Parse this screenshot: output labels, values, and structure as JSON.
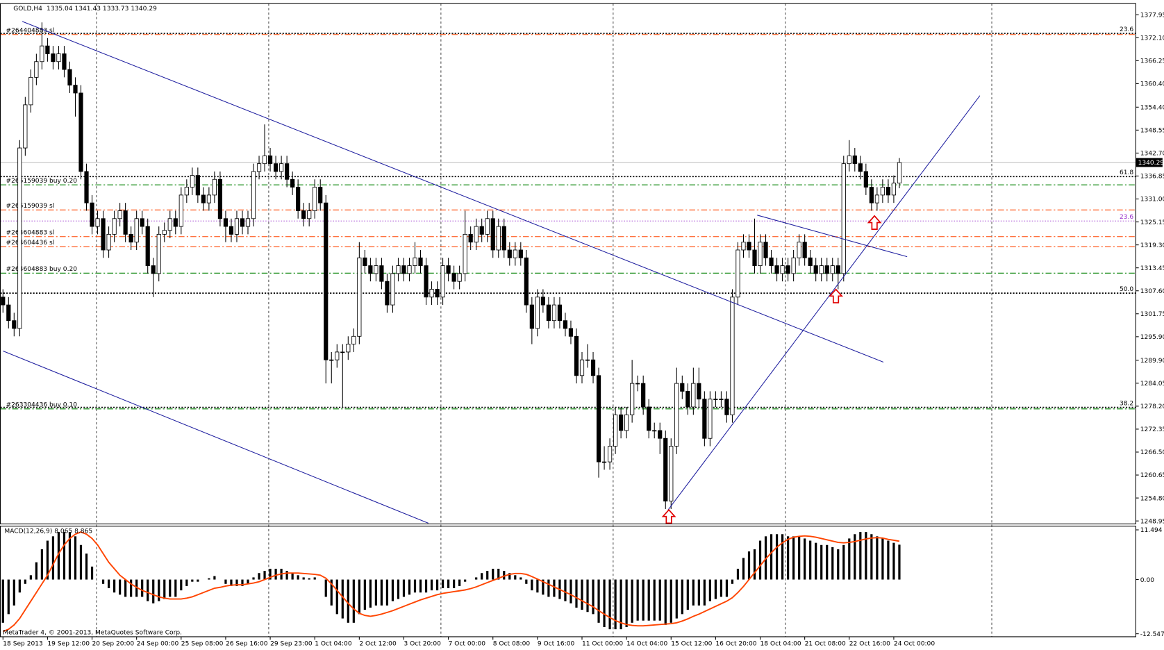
{
  "chart_data": {
    "type": "candlestick",
    "symbol": "GOLD,H4",
    "copyright": "MetaTrader 4, © 2001-2013, MetaQuotes Software Corp.",
    "ylim": [
      1248.19,
      1380.79
    ],
    "yticks": [
      1377.95,
      {
        "value": 1372.1,
        "label": "1372.10"
      },
      1366.25,
      {
        "value": 1360.4,
        "label": "1360.40"
      },
      {
        "value": 1354.4,
        "label": "1354.40"
      },
      1348.55,
      {
        "value": 1342.7,
        "label": "1342.70"
      },
      1336.85,
      {
        "value": 1331,
        "label": "1331.00"
      },
      1325.15,
      {
        "value": 1319.3,
        "label": "1319.30"
      },
      1313.45,
      {
        "value": 1307.6,
        "label": "1307.60"
      },
      1301.75,
      {
        "value": 1295.9,
        "label": "1295.90"
      },
      {
        "value": 1289.9,
        "label": "1289.90"
      },
      1284.05,
      {
        "value": 1278.2,
        "label": "1278.20"
      },
      1272.35,
      {
        "value": 1266.5,
        "label": "1266.50"
      },
      1260.65,
      {
        "value": 1254.8,
        "label": "1254.80"
      },
      1248.95
    ],
    "xlabels": [
      "18 Sep 2013",
      "19 Sep 12:00",
      "20 Sep 20:00",
      "24 Sep 00:00",
      "25 Sep 08:00",
      "26 Sep 16:00",
      "29 Sep 23:00",
      "1 Oct 04:00",
      "2 Oct 12:00",
      "3 Oct 20:00",
      "7 Oct 00:00",
      "8 Oct 08:00",
      "9 Oct 16:00",
      "11 Oct 00:00",
      "14 Oct 04:00",
      "15 Oct 12:00",
      "16 Oct 20:00",
      "18 Oct 04:00",
      "21 Oct 08:00",
      "22 Oct 16:00",
      "24 Oct 00:00"
    ],
    "up_color": "#ffffff",
    "down_color": "#000000",
    "price_line_color": "#c0c0c0",
    "ohlc": [
      [
        1306,
        1308,
        1302,
        1304
      ],
      [
        1304,
        1306,
        1298,
        1300
      ],
      [
        1300,
        1302,
        1296,
        1298
      ],
      [
        1298,
        1346,
        1296,
        1344
      ],
      [
        1344,
        1357,
        1342,
        1355
      ],
      [
        1355,
        1364,
        1353,
        1362
      ],
      [
        1362,
        1368,
        1360,
        1366
      ],
      [
        1366,
        1376,
        1364,
        1370
      ],
      [
        1370,
        1372,
        1366,
        1368
      ],
      [
        1368,
        1370,
        1364,
        1366
      ],
      [
        1366,
        1370,
        1364,
        1368
      ],
      [
        1368,
        1370,
        1362,
        1364
      ],
      [
        1364,
        1366,
        1358,
        1360
      ],
      [
        1360,
        1362,
        1352,
        1358
      ],
      [
        1358,
        1360,
        1336,
        1338
      ],
      [
        1338,
        1340,
        1328,
        1330
      ],
      [
        1330,
        1332,
        1322,
        1324
      ],
      [
        1324,
        1328,
        1322,
        1326
      ],
      [
        1326,
        1328,
        1316,
        1318
      ],
      [
        1318,
        1324,
        1316,
        1322
      ],
      [
        1322,
        1328,
        1320,
        1326
      ],
      [
        1326,
        1330,
        1324,
        1328
      ],
      [
        1328,
        1330,
        1320,
        1322
      ],
      [
        1322,
        1324,
        1318,
        1320
      ],
      [
        1320,
        1328,
        1318,
        1326
      ],
      [
        1326,
        1328,
        1322,
        1324
      ],
      [
        1324,
        1326,
        1312,
        1314
      ],
      [
        1314,
        1316,
        1306,
        1312
      ],
      [
        1312,
        1324,
        1310,
        1322
      ],
      [
        1322,
        1325,
        1320,
        1323
      ],
      [
        1323,
        1328,
        1321,
        1326
      ],
      [
        1326,
        1328,
        1322,
        1324
      ],
      [
        1324,
        1334,
        1322,
        1332
      ],
      [
        1332,
        1336,
        1330,
        1334
      ],
      [
        1334,
        1339,
        1332,
        1337
      ],
      [
        1337,
        1339,
        1330,
        1332
      ],
      [
        1332,
        1334,
        1328,
        1330
      ],
      [
        1330,
        1334,
        1328,
        1332
      ],
      [
        1332,
        1338,
        1330,
        1336
      ],
      [
        1336,
        1338,
        1324,
        1326
      ],
      [
        1326,
        1328,
        1320,
        1324
      ],
      [
        1324,
        1326,
        1320,
        1322
      ],
      [
        1322,
        1328,
        1320,
        1326
      ],
      [
        1326,
        1328,
        1322,
        1324
      ],
      [
        1324,
        1328,
        1322,
        1326
      ],
      [
        1326,
        1340,
        1324,
        1338
      ],
      [
        1338,
        1342,
        1336,
        1340
      ],
      [
        1340,
        1350,
        1338,
        1342
      ],
      [
        1342,
        1344,
        1338,
        1340
      ],
      [
        1340,
        1342,
        1336,
        1338
      ],
      [
        1338,
        1342,
        1336,
        1340
      ],
      [
        1340,
        1342,
        1334,
        1336
      ],
      [
        1336,
        1338,
        1332,
        1334
      ],
      [
        1334,
        1336,
        1326,
        1328
      ],
      [
        1328,
        1330,
        1324,
        1326
      ],
      [
        1326,
        1330,
        1324,
        1328
      ],
      [
        1328,
        1336,
        1326,
        1334
      ],
      [
        1334,
        1336,
        1328,
        1330
      ],
      [
        1330,
        1332,
        1284,
        1290
      ],
      [
        1290,
        1292,
        1284,
        1290
      ],
      [
        1290,
        1294,
        1288,
        1292
      ],
      [
        1292,
        1294,
        1278,
        1292
      ],
      [
        1292,
        1296,
        1290,
        1294
      ],
      [
        1294,
        1298,
        1292,
        1296
      ],
      [
        1296,
        1320,
        1294,
        1316
      ],
      [
        1316,
        1318,
        1312,
        1314
      ],
      [
        1314,
        1316,
        1310,
        1312
      ],
      [
        1312,
        1316,
        1310,
        1314
      ],
      [
        1314,
        1316,
        1308,
        1310
      ],
      [
        1310,
        1312,
        1302,
        1304
      ],
      [
        1304,
        1314,
        1302,
        1312
      ],
      [
        1312,
        1316,
        1310,
        1314
      ],
      [
        1314,
        1316,
        1310,
        1312
      ],
      [
        1312,
        1316,
        1310,
        1314
      ],
      [
        1314,
        1320,
        1312,
        1316
      ],
      [
        1316,
        1318,
        1312,
        1314
      ],
      [
        1314,
        1316,
        1304,
        1306
      ],
      [
        1306,
        1310,
        1304,
        1308
      ],
      [
        1308,
        1310,
        1304,
        1306
      ],
      [
        1306,
        1316,
        1304,
        1314
      ],
      [
        1314,
        1316,
        1310,
        1312
      ],
      [
        1312,
        1314,
        1308,
        1310
      ],
      [
        1310,
        1314,
        1308,
        1312
      ],
      [
        1312,
        1328,
        1310,
        1322
      ],
      [
        1322,
        1324,
        1318,
        1320
      ],
      [
        1320,
        1326,
        1318,
        1324
      ],
      [
        1324,
        1326,
        1320,
        1322
      ],
      [
        1322,
        1328,
        1320,
        1326
      ],
      [
        1326,
        1328,
        1316,
        1318
      ],
      [
        1318,
        1326,
        1316,
        1324
      ],
      [
        1324,
        1326,
        1316,
        1318
      ],
      [
        1318,
        1320,
        1314,
        1316
      ],
      [
        1316,
        1320,
        1314,
        1318
      ],
      [
        1318,
        1320,
        1314,
        1316
      ],
      [
        1316,
        1318,
        1302,
        1304
      ],
      [
        1304,
        1306,
        1294,
        1298
      ],
      [
        1298,
        1308,
        1296,
        1306
      ],
      [
        1306,
        1308,
        1302,
        1304
      ],
      [
        1304,
        1306,
        1298,
        1300
      ],
      [
        1300,
        1306,
        1298,
        1304
      ],
      [
        1304,
        1306,
        1298,
        1300
      ],
      [
        1300,
        1302,
        1296,
        1298
      ],
      [
        1298,
        1300,
        1294,
        1296
      ],
      [
        1296,
        1298,
        1284,
        1286
      ],
      [
        1286,
        1292,
        1284,
        1290
      ],
      [
        1290,
        1294,
        1288,
        1290
      ],
      [
        1290,
        1292,
        1284,
        1286
      ],
      [
        1286,
        1288,
        1260,
        1264
      ],
      [
        1264,
        1268,
        1262,
        1264
      ],
      [
        1264,
        1270,
        1262,
        1268
      ],
      [
        1268,
        1278,
        1266,
        1276
      ],
      [
        1276,
        1278,
        1270,
        1272
      ],
      [
        1272,
        1278,
        1270,
        1276
      ],
      [
        1276,
        1290,
        1274,
        1284
      ],
      [
        1284,
        1286,
        1282,
        1284
      ],
      [
        1284,
        1286,
        1276,
        1278
      ],
      [
        1278,
        1280,
        1270,
        1272
      ],
      [
        1272,
        1274,
        1270,
        1272
      ],
      [
        1272,
        1274,
        1266,
        1270
      ],
      [
        1270,
        1272,
        1252,
        1254
      ],
      [
        1254,
        1270,
        1252,
        1268
      ],
      [
        1268,
        1288,
        1266,
        1284
      ],
      [
        1284,
        1286,
        1280,
        1282
      ],
      [
        1282,
        1284,
        1276,
        1278
      ],
      [
        1278,
        1288,
        1276,
        1284
      ],
      [
        1284,
        1288,
        1278,
        1280
      ],
      [
        1280,
        1282,
        1268,
        1270
      ],
      [
        1270,
        1282,
        1268,
        1280
      ],
      [
        1280,
        1282,
        1278,
        1280
      ],
      [
        1280,
        1282,
        1278,
        1280
      ],
      [
        1280,
        1282,
        1274,
        1276
      ],
      [
        1276,
        1308,
        1274,
        1306
      ],
      [
        1306,
        1320,
        1304,
        1318
      ],
      [
        1318,
        1322,
        1316,
        1320
      ],
      [
        1320,
        1322,
        1316,
        1318
      ],
      [
        1318,
        1326,
        1312,
        1314
      ],
      [
        1314,
        1322,
        1312,
        1320
      ],
      [
        1320,
        1322,
        1314,
        1316
      ],
      [
        1316,
        1318,
        1312,
        1314
      ],
      [
        1314,
        1316,
        1310,
        1312
      ],
      [
        1312,
        1316,
        1310,
        1314
      ],
      [
        1314,
        1316,
        1310,
        1312
      ],
      [
        1312,
        1318,
        1310,
        1316
      ],
      [
        1316,
        1322,
        1314,
        1320
      ],
      [
        1320,
        1322,
        1314,
        1316
      ],
      [
        1316,
        1318,
        1312,
        1314
      ],
      [
        1314,
        1316,
        1310,
        1312
      ],
      [
        1312,
        1316,
        1310,
        1314
      ],
      [
        1314,
        1316,
        1310,
        1312
      ],
      [
        1312,
        1316,
        1310,
        1314
      ],
      [
        1314,
        1316,
        1308,
        1312
      ],
      [
        1312,
        1342,
        1310,
        1340
      ],
      [
        1340,
        1346,
        1338,
        1342
      ],
      [
        1342,
        1344,
        1338,
        1340
      ],
      [
        1340,
        1342,
        1336,
        1338
      ],
      [
        1338,
        1340,
        1332,
        1334
      ],
      [
        1334,
        1336,
        1328,
        1330
      ],
      [
        1330,
        1334,
        1328,
        1332
      ],
      [
        1332,
        1336,
        1330,
        1334
      ],
      [
        1334,
        1336,
        1330,
        1332
      ],
      [
        1332,
        1337,
        1330,
        1335.04
      ],
      [
        1335.04,
        1341.43,
        1333.73,
        1340.29
      ]
    ],
    "orders": [
      {
        "label": "#264404883 sl",
        "value": 1372.9,
        "color": "#ff4500"
      },
      {
        "label": "#265159039 buy 0.20",
        "value": 1334.6,
        "color": "#008000"
      },
      {
        "label": "#265159039 sl",
        "value": 1328.2,
        "color": "#ff4500"
      },
      {
        "label": "#264604883 sl",
        "value": 1321.4,
        "color": "#ff4500"
      },
      {
        "label": "#264604436 sl",
        "value": 1318.8,
        "color": "#ff4500"
      },
      {
        "label": "#264604883 buy 0.20",
        "value": 1312.1,
        "color": "#008000"
      },
      {
        "label": "#263304436 buy 0.10",
        "value": 1277.5,
        "color": "#008000"
      }
    ],
    "fib": [
      {
        "label": "23.6",
        "value": 1373.2,
        "color": "#000000"
      },
      {
        "label": "61.8",
        "value": 1336.7,
        "color": "#000000"
      },
      {
        "label": "50.0",
        "value": 1307.0,
        "color": "#000000"
      },
      {
        "label": "38.2",
        "value": 1277.9,
        "color": "#000000"
      },
      {
        "label": "23.6",
        "value": 1325.4,
        "color": "#9932cc"
      }
    ],
    "indicator": {
      "name": "MACD(12,26,9)",
      "ylim": [
        -13.234,
        12.353
      ],
      "yticks": [
        11.494,
        {
          "value": 0,
          "label": "0.00"
        },
        -12.547
      ],
      "histogram_color": "#000000",
      "signal_color": "#ff4500",
      "histogram": [
        -10,
        -8,
        -6,
        -3,
        -1,
        1,
        4,
        7,
        9,
        10,
        11,
        11,
        11,
        10,
        8,
        6,
        3,
        0,
        -1,
        -2,
        -3,
        -3.5,
        -4,
        -4,
        -4,
        -4,
        -5,
        -5.5,
        -5,
        -4.5,
        -4,
        -4,
        -2.5,
        -1.5,
        -0.5,
        -0.5,
        0,
        0.3,
        0.8,
        0,
        -1,
        -1.5,
        -1.5,
        -1.5,
        -1,
        0.5,
        1.5,
        2,
        2.5,
        2.5,
        2.5,
        2,
        1.5,
        1,
        0.5,
        0.3,
        0.5,
        0,
        -4,
        -6,
        -8,
        -9,
        -10,
        -10,
        -8,
        -7,
        -6.5,
        -6,
        -6,
        -6,
        -5,
        -4.5,
        -4,
        -3.5,
        -3,
        -3,
        -3,
        -2.5,
        -2.5,
        -2,
        -2,
        -2,
        -1.5,
        -0.5,
        0,
        0.5,
        1.5,
        2,
        2.5,
        2.5,
        2,
        1.5,
        1,
        0.5,
        -1,
        -2.5,
        -3,
        -3.5,
        -4,
        -4,
        -4.5,
        -5,
        -5.5,
        -6.5,
        -7,
        -7.5,
        -8,
        -10,
        -11,
        -11.5,
        -11.5,
        -11.5,
        -11,
        -10,
        -9.5,
        -9.5,
        -9.5,
        -9.5,
        -9.5,
        -10.5,
        -10,
        -9,
        -8,
        -7,
        -6,
        -6,
        -6,
        -5,
        -4.5,
        -4,
        -4,
        -1,
        2.5,
        5,
        6.5,
        7,
        9,
        10,
        10.5,
        10.5,
        10.5,
        10,
        10,
        10,
        9.5,
        9,
        8.5,
        8,
        8,
        7.5,
        7,
        8,
        9.5,
        10.5,
        11,
        11,
        10.5,
        10,
        9.5,
        9,
        8.5,
        8.065
      ],
      "signal": [
        -12,
        -11.5,
        -10.5,
        -9,
        -7,
        -5,
        -3,
        -1,
        1,
        3.5,
        6,
        8,
        9.5,
        10.5,
        11,
        10.5,
        9.5,
        8,
        6,
        4,
        2.5,
        1,
        0,
        -1,
        -1.8,
        -2.5,
        -3,
        -3.5,
        -4,
        -4.3,
        -4.5,
        -4.5,
        -4.5,
        -4.3,
        -4,
        -3.5,
        -3,
        -2.5,
        -2,
        -1.8,
        -1.5,
        -1.3,
        -1.2,
        -1.2,
        -1,
        -0.8,
        -0.5,
        0,
        0.5,
        1,
        1.3,
        1.5,
        1.5,
        1.5,
        1.4,
        1.3,
        1.2,
        1,
        0.3,
        -1,
        -2.5,
        -4,
        -5.5,
        -6.8,
        -7.8,
        -8.3,
        -8.5,
        -8.3,
        -8,
        -7.6,
        -7.2,
        -6.7,
        -6.2,
        -5.7,
        -5.2,
        -4.7,
        -4.3,
        -3.9,
        -3.5,
        -3.2,
        -3,
        -2.8,
        -2.6,
        -2.4,
        -2.1,
        -1.7,
        -1.2,
        -0.7,
        -0.2,
        0.3,
        0.8,
        1.2,
        1.4,
        1.4,
        1.2,
        0.7,
        0.1,
        -0.5,
        -1.1,
        -1.7,
        -2.3,
        -2.9,
        -3.5,
        -4.2,
        -4.9,
        -5.6,
        -6.3,
        -7.2,
        -8,
        -8.8,
        -9.5,
        -10,
        -10.4,
        -10.6,
        -10.7,
        -10.7,
        -10.6,
        -10.5,
        -10.4,
        -10.3,
        -10.2,
        -10,
        -9.6,
        -9.1,
        -8.5,
        -8,
        -7.4,
        -6.8,
        -6.2,
        -5.6,
        -5,
        -4.2,
        -3,
        -1.6,
        0,
        1.6,
        3.2,
        4.8,
        6.2,
        7.5,
        8.5,
        9.3,
        9.8,
        10,
        10.1,
        10,
        9.8,
        9.5,
        9.2,
        8.9,
        8.6,
        8.5,
        8.6,
        8.8,
        9.1,
        9.4,
        9.6,
        9.7,
        9.6,
        9.3,
        9.1,
        8.865
      ]
    }
  }
}
